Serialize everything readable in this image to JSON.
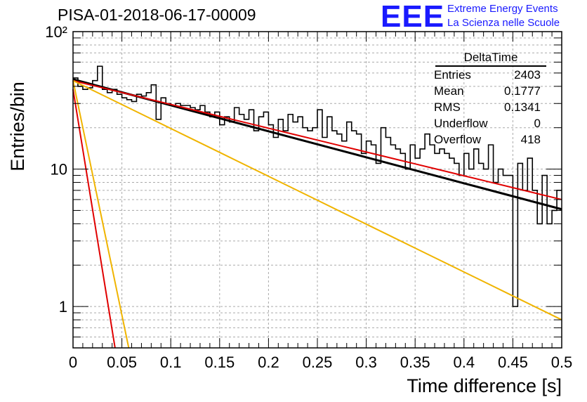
{
  "header": {
    "title": "PISA-01-2018-06-17-00009",
    "logo_text": "EEE",
    "logo_line1": "Extreme Energy Events",
    "logo_line2": "La Scienza nelle Scuole"
  },
  "stats": {
    "title": "DeltaTime",
    "rows": [
      {
        "label": "Entries",
        "value": "2403"
      },
      {
        "label": "Mean",
        "value": "0.1777"
      },
      {
        "label": "RMS",
        "value": "0.1341"
      },
      {
        "label": "Underflow",
        "value": "0"
      },
      {
        "label": "Overflow",
        "value": "418"
      }
    ]
  },
  "chart_data": {
    "type": "line",
    "title": "PISA-01-2018-06-17-00009",
    "xlabel": "Time difference [s]",
    "ylabel": "Entries/bin",
    "xlim": [
      0,
      0.5
    ],
    "ylim": [
      0.5,
      100
    ],
    "yscale": "log",
    "grid": true,
    "x_ticks": [
      "0",
      "0.05",
      "0.1",
      "0.15",
      "0.2",
      "0.25",
      "0.3",
      "0.35",
      "0.4",
      "0.45",
      "0.5"
    ],
    "y_ticks": [
      "1",
      "10",
      "10²"
    ],
    "histogram": {
      "bin_width": 0.005,
      "counts": [
        46,
        40,
        38,
        39,
        44,
        56,
        38,
        36,
        38,
        35,
        33,
        32,
        31,
        35,
        34,
        36,
        41,
        23,
        33,
        30,
        29,
        30,
        29,
        29,
        28,
        27,
        29,
        26,
        24,
        26,
        21,
        24,
        22,
        28,
        25,
        23,
        27,
        19,
        24,
        26,
        21,
        17,
        23,
        19,
        25,
        22,
        24,
        20,
        19,
        20,
        27,
        17,
        24,
        19,
        18,
        16,
        22,
        19,
        18,
        13,
        16,
        15,
        11,
        20,
        17,
        15,
        14,
        13,
        10,
        15,
        12,
        14,
        18,
        15,
        13,
        14,
        13,
        12,
        11,
        9,
        13,
        10,
        14,
        11,
        10,
        15,
        8,
        10,
        9,
        9,
        1,
        11,
        7,
        12,
        7,
        4,
        9,
        4,
        5,
        7
      ],
      "color": "#000000"
    },
    "series": [
      {
        "values": [
          45.0,
          5.1
        ],
        "x": [
          0.0,
          0.5
        ],
        "color": "#000000"
      },
      {
        "values": [
          44.0,
          6.0
        ],
        "x": [
          0.0,
          0.5
        ],
        "color": "#e00000"
      },
      {
        "values": [
          44.0,
          0.8
        ],
        "x": [
          0.0,
          0.5
        ],
        "color": "#f0b400"
      },
      {
        "values": [
          38.0,
          0.5
        ],
        "x": [
          0.0,
          0.043
        ],
        "color": "#e00000"
      },
      {
        "values": [
          44.0,
          0.5
        ],
        "x": [
          0.0,
          0.057
        ],
        "color": "#f0b400"
      }
    ]
  }
}
